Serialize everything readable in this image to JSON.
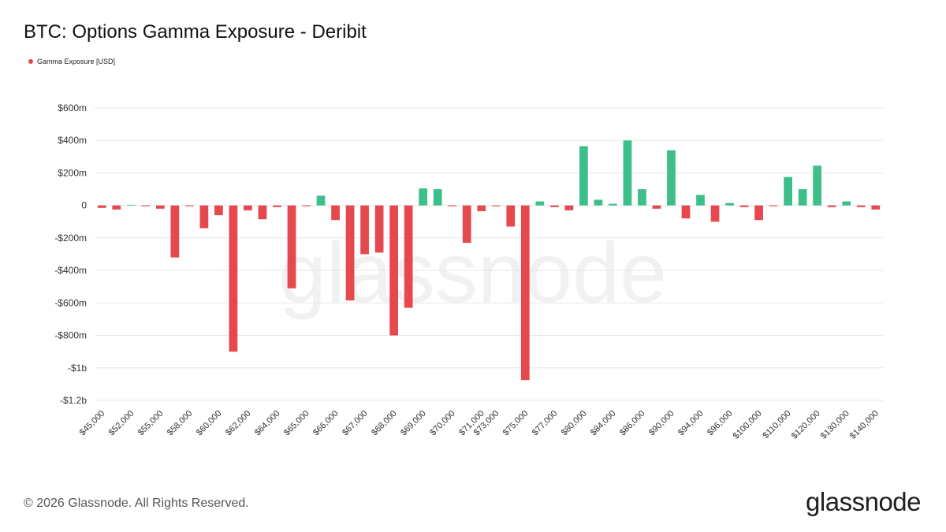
{
  "title": "BTC: Options Gamma Exposure - Deribit",
  "legend": {
    "label": "Gamma Exposure [USD]",
    "color": "#e5484d"
  },
  "footer": "© 2026 Glassnode. All Rights Reserved.",
  "brand": "glassnode",
  "watermark": "glassnode",
  "colors": {
    "positive": "#3dbf8a",
    "negative": "#e5484d",
    "grid": "#e6e6e6",
    "axis_text": "#333333"
  },
  "chart_data": {
    "type": "bar",
    "title": "BTC: Options Gamma Exposure - Deribit",
    "xlabel": "",
    "ylabel": "Gamma Exposure [USD]",
    "ylim": [
      -1200,
      600
    ],
    "y_unit": "USD millions",
    "yticks": [
      600,
      400,
      200,
      0,
      -200,
      -400,
      -600,
      -800,
      -1000,
      -1200
    ],
    "ytick_labels": [
      "$600m",
      "$400m",
      "$200m",
      "0",
      "-$200m",
      "-$400m",
      "-$600m",
      "-$800m",
      "-$1b",
      "-$1.2b"
    ],
    "x_tick_labels": [
      "$45,000",
      "$52,000",
      "$55,000",
      "$58,000",
      "$60,000",
      "$62,000",
      "$64,000",
      "$65,000",
      "$66,000",
      "$67,000",
      "$68,000",
      "$69,000",
      "$70,000",
      "$71,000",
      "$73,000",
      "$75,000",
      "$77,000",
      "$80,000",
      "$84,000",
      "$86,000",
      "$90,000",
      "$94,000",
      "$96,000",
      "$100,000",
      "$110,000",
      "$120,000",
      "$130,000",
      "$140,000"
    ],
    "values": [
      -15,
      -25,
      0,
      -5,
      -20,
      -320,
      -5,
      -140,
      -60,
      -900,
      -30,
      -85,
      -10,
      -510,
      -5,
      60,
      -90,
      -585,
      -300,
      -290,
      -800,
      -630,
      105,
      100,
      -5,
      -230,
      -35,
      -5,
      -130,
      -1075,
      25,
      -10,
      -30,
      365,
      35,
      10,
      400,
      100,
      -20,
      340,
      -80,
      65,
      -100,
      15,
      -10,
      -90,
      -5,
      175,
      100,
      245,
      -10,
      25,
      -10,
      -25
    ]
  }
}
